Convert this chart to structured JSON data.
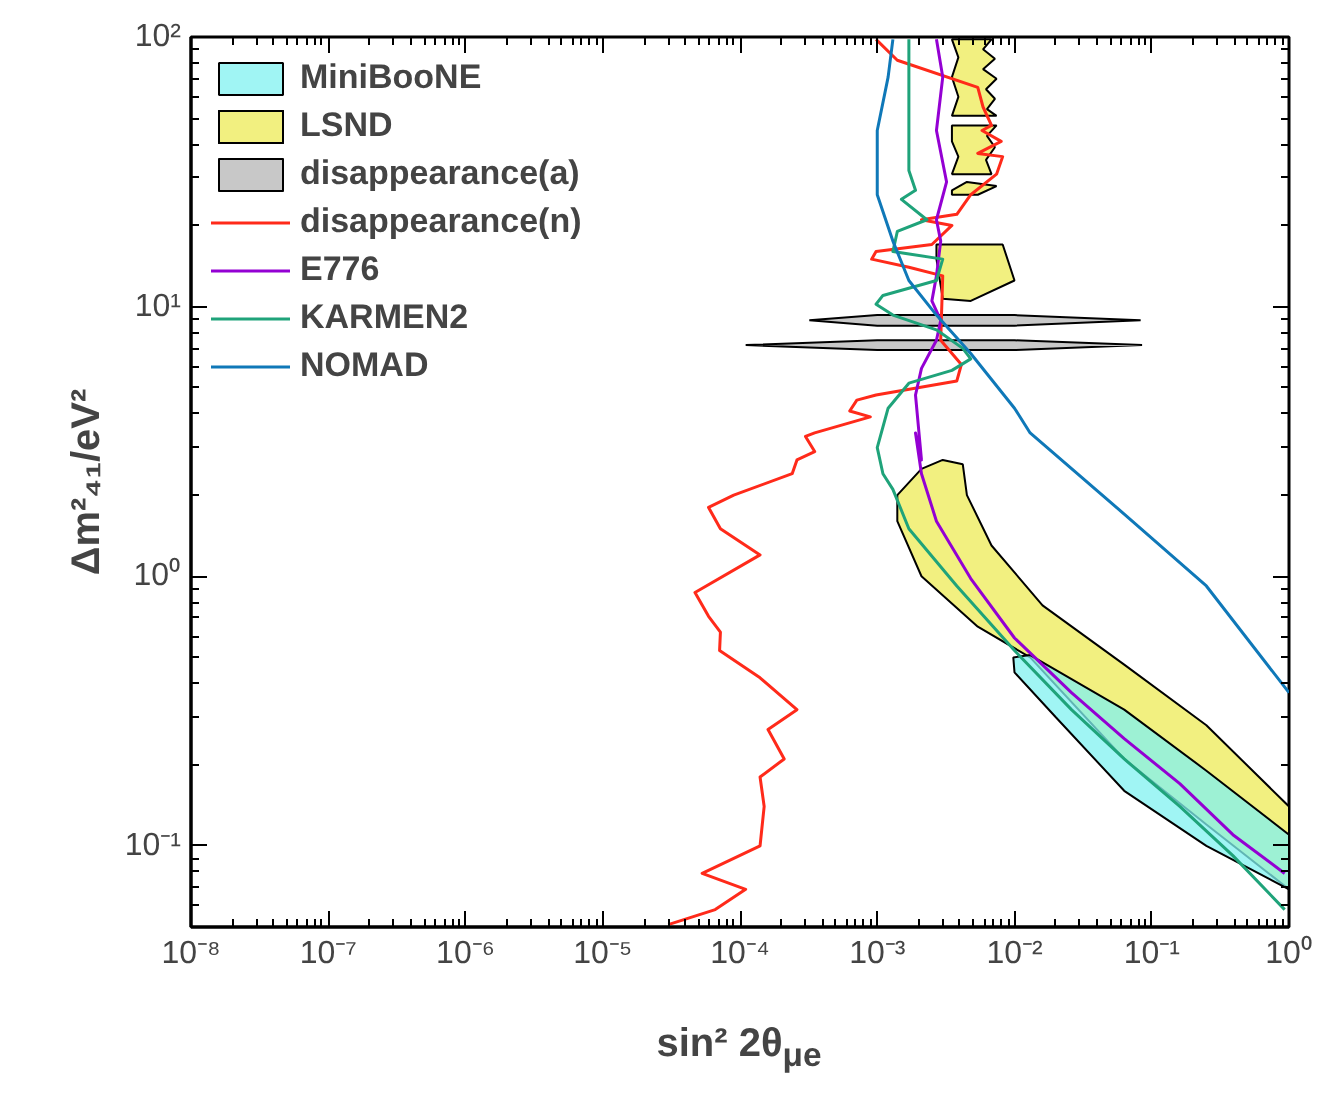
{
  "chart_data": {
    "type": "line",
    "xlabel": "sin² 2θ$_{μe}$",
    "ylabel": "Δm²₄₁/eV²",
    "log": "xy",
    "grid": false,
    "legend": "top left",
    "xlim": [
      1e-08,
      1
    ],
    "ylim": [
      0.05,
      100
    ],
    "xticks": [
      {
        "value": 1e-08,
        "label": "10⁻⁸"
      },
      {
        "value": 1e-07,
        "label": "10⁻⁷"
      },
      {
        "value": 1e-06,
        "label": "10⁻⁶"
      },
      {
        "value": 1e-05,
        "label": "10⁻⁵"
      },
      {
        "value": 0.0001,
        "label": "10⁻⁴"
      },
      {
        "value": 0.001,
        "label": "10⁻³"
      },
      {
        "value": 0.01,
        "label": "10⁻²"
      },
      {
        "value": 0.1,
        "label": "10⁻¹"
      },
      {
        "value": 1,
        "label": "10⁰"
      }
    ],
    "yticks": [
      {
        "value": 0.1,
        "label": "10⁻¹"
      },
      {
        "value": 1,
        "label": "10⁰"
      },
      {
        "value": 10,
        "label": "10¹"
      },
      {
        "value": 100,
        "label": "10²"
      }
    ],
    "series": [
      {
        "name": "MiniBooNE",
        "type": "area",
        "color": "#80f2f0",
        "x": [
          0.0098,
          0.013,
          0.063,
          0.25,
          1.0,
          1.0,
          0.25,
          0.063,
          0.02,
          0.01,
          0.0098
        ],
        "values": [
          0.5,
          0.51,
          0.32,
          0.19,
          0.11,
          0.069,
          0.1,
          0.16,
          0.3,
          0.44,
          0.5
        ]
      },
      {
        "name": "LSND",
        "type": "area",
        "color": "#f2f080",
        "x": [
          0.0035,
          0.0068,
          0.0059,
          0.0072,
          0.0059,
          0.0074,
          0.0062,
          0.0072,
          0.0063,
          0.0074,
          0.0035,
          0.0039,
          0.0035,
          0.0039,
          0.0035,
          null,
          0.0035,
          0.0074,
          0.0063,
          0.0072,
          0.0062,
          0.0068,
          0.0035,
          0.0039,
          0.0035,
          0.0035,
          null,
          0.0035,
          0.0045,
          0.0074,
          0.0054,
          0.0035,
          null,
          0.0027,
          0.0082,
          0.01,
          0.0048,
          0.003,
          0.0027,
          null,
          0.0042,
          0.0045,
          0.0068,
          0.016,
          0.063,
          0.25,
          1.0,
          1.0,
          0.25,
          0.063,
          0.013,
          0.0054,
          0.0021,
          0.0014,
          0.0014,
          0.0021,
          0.003,
          0.0042
        ],
        "values": [
          98,
          98,
          90,
          83,
          76,
          70,
          64,
          59,
          54,
          51,
          51,
          60,
          71,
          84,
          98,
          null,
          47,
          47,
          43,
          39,
          35,
          31,
          31,
          36,
          41,
          47,
          null,
          27,
          29,
          28,
          26,
          26,
          null,
          17,
          17,
          12.5,
          10.5,
          10.7,
          15,
          null,
          2.6,
          2.0,
          1.3,
          0.78,
          0.47,
          0.28,
          0.14,
          0.069,
          0.12,
          0.21,
          0.5,
          0.65,
          1.0,
          1.6,
          2.0,
          2.5,
          2.7,
          2.6
        ]
      },
      {
        "name": "disappearance(a)",
        "type": "area",
        "color": "#c8c8c8",
        "x": [
          0.00032,
          0.001,
          0.01,
          0.083,
          0.01,
          0.001,
          0.00032,
          null,
          0.00011,
          0.001,
          0.01,
          0.085,
          0.01,
          0.001,
          0.00011
        ],
        "values": [
          8.9,
          9.3,
          9.3,
          8.9,
          8.5,
          8.5,
          8.9,
          null,
          7.2,
          7.5,
          7.5,
          7.2,
          6.9,
          6.9,
          7.2
        ]
      },
      {
        "name": "disappearance(n)",
        "color": "#ff2a1a",
        "x": [
          0.00098,
          0.0014,
          0.0054,
          0.0059,
          0.0068,
          0.0058,
          0.008,
          0.0054,
          0.0082,
          0.0074,
          0.0048,
          0.0038,
          0.0021,
          0.0035,
          0.0025,
          0.00098,
          0.00091,
          0.0017,
          0.003,
          0.0029,
          0.0041,
          0.0038,
          0.00098,
          0.00071,
          0.00063,
          0.00089,
          0.00035,
          0.0003,
          0.00035,
          0.00026,
          0.00024,
          9e-05,
          5.9e-05,
          7.2e-05,
          0.00014,
          4.7e-05,
          5.9e-05,
          7.2e-05,
          7.1e-05,
          0.00014,
          0.00026,
          0.00016,
          0.00021,
          0.00014,
          0.00015,
          0.00014,
          5.3e-05,
          0.00011,
          6.6e-05,
          3e-05
        ],
        "values": [
          98,
          82,
          65,
          55,
          47,
          45,
          41,
          37,
          36,
          31,
          26,
          22,
          21,
          20,
          17,
          16,
          15,
          14,
          13,
          7.5,
          6.1,
          5.3,
          4.7,
          4.5,
          4.1,
          3.9,
          3.4,
          3.3,
          2.9,
          2.7,
          2.4,
          2.0,
          1.8,
          1.5,
          1.2,
          0.87,
          0.71,
          0.62,
          0.53,
          0.42,
          0.32,
          0.27,
          0.21,
          0.18,
          0.14,
          0.1,
          0.079,
          0.069,
          0.058,
          0.051
        ]
      },
      {
        "name": "E776",
        "color": "#9400d3",
        "x": [
          0.0027,
          0.003,
          0.0027,
          0.0032,
          0.0027,
          0.0029,
          0.0027,
          0.0025,
          0.0029,
          0.0027,
          0.0021,
          0.0019,
          0.0021,
          0.0019,
          0.0021,
          0.0027,
          0.0048,
          0.01,
          0.026,
          0.063,
          0.16,
          0.39,
          0.93
        ],
        "values": [
          98,
          71,
          45,
          29,
          21,
          17.5,
          13,
          10.5,
          8.9,
          7.5,
          5.9,
          4.7,
          2.7,
          3.4,
          2.4,
          1.6,
          0.98,
          0.59,
          0.37,
          0.25,
          0.17,
          0.11,
          0.079
        ]
      },
      {
        "name": "KARMEN2",
        "color": "#1fa37a",
        "x": [
          0.0017,
          0.0017,
          0.0017,
          0.0019,
          0.0015,
          0.0023,
          0.0014,
          0.0013,
          0.003,
          0.0027,
          0.0011,
          0.00098,
          0.0013,
          0.0027,
          0.0042,
          0.0048,
          0.0035,
          0.0017,
          0.0012,
          0.001,
          0.0011,
          0.0013,
          0.0017,
          0.0038,
          0.01,
          0.026,
          0.063,
          0.16,
          0.39,
          0.93
        ],
        "values": [
          98,
          60,
          32,
          27,
          25,
          21,
          19,
          16,
          15,
          12.5,
          11,
          10.2,
          9.3,
          8.2,
          7.0,
          6.4,
          5.8,
          5.2,
          4.2,
          3.0,
          2.4,
          2.1,
          1.5,
          0.92,
          0.53,
          0.32,
          0.21,
          0.14,
          0.092,
          0.058
        ]
      },
      {
        "name": "NOMAD",
        "color": "#0f78b8",
        "x": [
          0.0013,
          0.0012,
          0.001,
          0.001,
          0.0013,
          0.0017,
          0.0027,
          0.0048,
          0.01,
          0.013,
          0.063,
          0.25,
          1.0
        ],
        "values": [
          98,
          71,
          45,
          26,
          17.5,
          12.5,
          9.3,
          6.7,
          4.2,
          3.4,
          1.7,
          0.92,
          0.37
        ]
      }
    ]
  }
}
